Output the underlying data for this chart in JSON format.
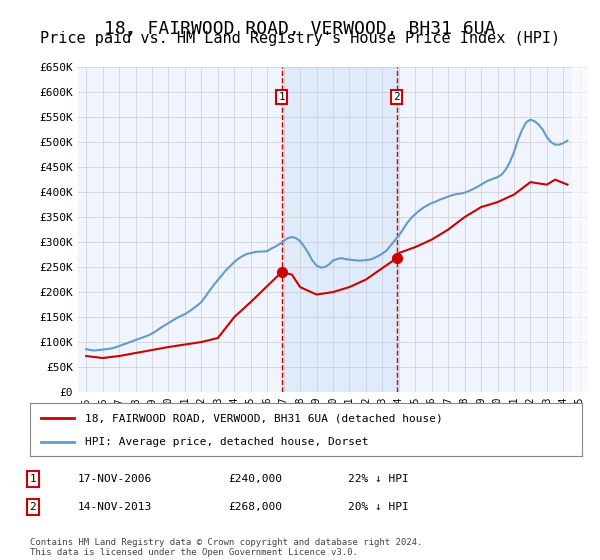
{
  "title": "18, FAIRWOOD ROAD, VERWOOD, BH31 6UA",
  "subtitle": "Price paid vs. HM Land Registry's House Price Index (HPI)",
  "title_fontsize": 13,
  "subtitle_fontsize": 11,
  "background_color": "#ffffff",
  "plot_bg_color": "#f0f4ff",
  "grid_color": "#cccccc",
  "ylim": [
    0,
    650000
  ],
  "yticks": [
    0,
    50000,
    100000,
    150000,
    200000,
    250000,
    300000,
    350000,
    400000,
    450000,
    500000,
    550000,
    600000,
    650000
  ],
  "ytick_labels": [
    "£0",
    "£50K",
    "£100K",
    "£150K",
    "£200K",
    "£250K",
    "£300K",
    "£350K",
    "£400K",
    "£450K",
    "£500K",
    "£550K",
    "£600K",
    "£650K"
  ],
  "xlim": [
    1994.5,
    2025.5
  ],
  "xticks": [
    1995,
    1996,
    1997,
    1998,
    1999,
    2000,
    2001,
    2002,
    2003,
    2004,
    2005,
    2006,
    2007,
    2008,
    2009,
    2010,
    2011,
    2012,
    2013,
    2014,
    2015,
    2016,
    2017,
    2018,
    2019,
    2020,
    2021,
    2022,
    2023,
    2024,
    2025
  ],
  "red_line_color": "#cc0000",
  "blue_line_color": "#6699cc",
  "marker1_x": 2006.88,
  "marker1_y": 240000,
  "marker2_x": 2013.88,
  "marker2_y": 268000,
  "shade_x1": 2006.88,
  "shade_x2": 2013.88,
  "vline_color": "#cc0000",
  "shade_color": "#d0e4f7",
  "legend_label_red": "18, FAIRWOOD ROAD, VERWOOD, BH31 6UA (detached house)",
  "legend_label_blue": "HPI: Average price, detached house, Dorset",
  "annotation1_label": "1",
  "annotation1_date": "17-NOV-2006",
  "annotation1_price": "£240,000",
  "annotation1_change": "22% ↓ HPI",
  "annotation2_label": "2",
  "annotation2_date": "14-NOV-2013",
  "annotation2_price": "£268,000",
  "annotation2_change": "20% ↓ HPI",
  "footer": "Contains HM Land Registry data © Crown copyright and database right 2024.\nThis data is licensed under the Open Government Licence v3.0.",
  "hpi_years": [
    1995,
    1995.25,
    1995.5,
    1995.75,
    1996,
    1996.25,
    1996.5,
    1996.75,
    1997,
    1997.25,
    1997.5,
    1997.75,
    1998,
    1998.25,
    1998.5,
    1998.75,
    1999,
    1999.25,
    1999.5,
    1999.75,
    2000,
    2000.25,
    2000.5,
    2000.75,
    2001,
    2001.25,
    2001.5,
    2001.75,
    2002,
    2002.25,
    2002.5,
    2002.75,
    2003,
    2003.25,
    2003.5,
    2003.75,
    2004,
    2004.25,
    2004.5,
    2004.75,
    2005,
    2005.25,
    2005.5,
    2005.75,
    2006,
    2006.25,
    2006.5,
    2006.75,
    2007,
    2007.25,
    2007.5,
    2007.75,
    2008,
    2008.25,
    2008.5,
    2008.75,
    2009,
    2009.25,
    2009.5,
    2009.75,
    2010,
    2010.25,
    2010.5,
    2010.75,
    2011,
    2011.25,
    2011.5,
    2011.75,
    2012,
    2012.25,
    2012.5,
    2012.75,
    2013,
    2013.25,
    2013.5,
    2013.75,
    2014,
    2014.25,
    2014.5,
    2014.75,
    2015,
    2015.25,
    2015.5,
    2015.75,
    2016,
    2016.25,
    2016.5,
    2016.75,
    2017,
    2017.25,
    2017.5,
    2017.75,
    2018,
    2018.25,
    2018.5,
    2018.75,
    2019,
    2019.25,
    2019.5,
    2019.75,
    2020,
    2020.25,
    2020.5,
    2020.75,
    2021,
    2021.25,
    2021.5,
    2021.75,
    2022,
    2022.25,
    2022.5,
    2022.75,
    2023,
    2023.25,
    2023.5,
    2023.75,
    2024,
    2024.25
  ],
  "hpi_values": [
    86000,
    84000,
    83000,
    84000,
    85000,
    86000,
    87000,
    89000,
    92000,
    95000,
    98000,
    101000,
    104000,
    107000,
    110000,
    113000,
    117000,
    122000,
    128000,
    133000,
    138000,
    143000,
    148000,
    152000,
    156000,
    161000,
    167000,
    173000,
    180000,
    191000,
    203000,
    214000,
    224000,
    234000,
    244000,
    252000,
    260000,
    267000,
    272000,
    276000,
    278000,
    280000,
    281000,
    281000,
    282000,
    287000,
    291000,
    296000,
    302000,
    308000,
    310000,
    308000,
    302000,
    291000,
    278000,
    263000,
    253000,
    249000,
    250000,
    255000,
    263000,
    266000,
    268000,
    266000,
    265000,
    264000,
    263000,
    263000,
    264000,
    265000,
    268000,
    272000,
    277000,
    283000,
    293000,
    303000,
    313000,
    325000,
    338000,
    348000,
    356000,
    363000,
    369000,
    374000,
    378000,
    381000,
    385000,
    388000,
    391000,
    394000,
    396000,
    397000,
    399000,
    402000,
    406000,
    410000,
    415000,
    420000,
    424000,
    427000,
    430000,
    435000,
    445000,
    460000,
    480000,
    505000,
    525000,
    540000,
    545000,
    542000,
    535000,
    525000,
    510000,
    500000,
    495000,
    495000,
    498000,
    503000
  ],
  "red_years": [
    1995,
    1996,
    1997,
    1998,
    1999,
    2000,
    2001,
    2002,
    2003,
    2004,
    2005,
    2006.88,
    2007.5,
    2008,
    2009,
    2010,
    2011,
    2012,
    2013.88,
    2014,
    2015,
    2016,
    2017,
    2018,
    2019,
    2020,
    2021,
    2022,
    2023,
    2023.5,
    2024.25
  ],
  "red_values": [
    72000,
    68000,
    72000,
    78000,
    84000,
    90000,
    95000,
    100000,
    108000,
    150000,
    180000,
    240000,
    235000,
    210000,
    195000,
    200000,
    210000,
    225000,
    268000,
    278000,
    290000,
    305000,
    325000,
    350000,
    370000,
    380000,
    395000,
    420000,
    415000,
    425000,
    415000
  ]
}
